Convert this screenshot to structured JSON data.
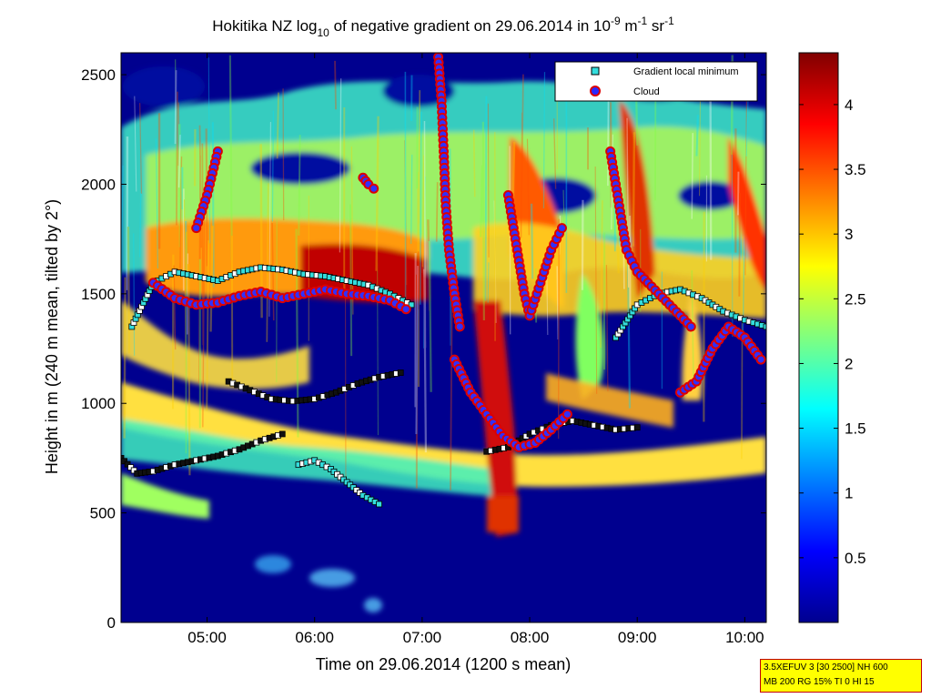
{
  "chart_data": {
    "type": "heatmap",
    "title": {
      "pre": "Hokitika NZ log",
      "sub": "10",
      "mid": " of negative gradient on 29.06.2014 in 10",
      "sup1": "-9",
      "mid2": " m",
      "sup2": "-1",
      "mid3": " sr",
      "sup3": "-1"
    },
    "xlabel": "Time on 29.06.2014 (1200 s mean)",
    "ylabel": "Height in m (240 m mean, tilted by 2°)",
    "x_ticks": [
      "05:00",
      "06:00",
      "07:00",
      "08:00",
      "09:00",
      "10:00"
    ],
    "x_range_hours": [
      4.2,
      10.2
    ],
    "y_ticks": [
      "0",
      "500",
      "1000",
      "1500",
      "2000",
      "2500"
    ],
    "ylim": [
      0,
      2600
    ],
    "colorbar_ticks": [
      "0.5",
      "1",
      "1.5",
      "2",
      "2.5",
      "3",
      "3.5",
      "4"
    ],
    "colorbar_range": [
      0,
      4.4
    ],
    "colormap": "jet",
    "legend_position": "top-right",
    "legend": [
      {
        "label": "Gradient local minimum",
        "marker": "square",
        "color": "#33dddd"
      },
      {
        "label": "Cloud",
        "marker": "circle",
        "color": "#dd0000"
      }
    ],
    "gradient_minimum_tracks": [
      {
        "t": [
          4.2,
          4.35,
          4.5,
          4.7,
          4.9,
          5.1,
          5.3,
          5.5,
          5.7
        ],
        "h": [
          750,
          680,
          690,
          720,
          740,
          760,
          790,
          830,
          860
        ]
      },
      {
        "t": [
          5.85,
          6.0,
          6.15,
          6.3,
          6.45,
          6.6
        ],
        "h": [
          720,
          740,
          700,
          640,
          580,
          540
        ]
      },
      {
        "t": [
          5.2,
          5.4,
          5.6,
          5.8,
          6.0,
          6.2,
          6.4,
          6.6,
          6.8
        ],
        "h": [
          1100,
          1060,
          1020,
          1010,
          1020,
          1050,
          1090,
          1120,
          1140
        ]
      },
      {
        "t": [
          4.3,
          4.5,
          4.7,
          4.9,
          5.1,
          5.3,
          5.5,
          5.7,
          5.9,
          6.1,
          6.3,
          6.5,
          6.7,
          6.9
        ],
        "h": [
          1350,
          1550,
          1600,
          1580,
          1560,
          1600,
          1620,
          1610,
          1590,
          1580,
          1560,
          1540,
          1500,
          1450
        ]
      },
      {
        "t": [
          7.6,
          7.8,
          8.0,
          8.2,
          8.4,
          8.6,
          8.8,
          9.0
        ],
        "h": [
          780,
          800,
          860,
          900,
          920,
          900,
          880,
          890
        ]
      },
      {
        "t": [
          8.8,
          9.0,
          9.2,
          9.4,
          9.6,
          9.8,
          10.0,
          10.2
        ],
        "h": [
          1300,
          1450,
          1500,
          1520,
          1480,
          1420,
          1380,
          1350
        ]
      }
    ],
    "cloud_tracks": [
      {
        "t": [
          4.5,
          4.7,
          4.9,
          5.1,
          5.3,
          5.5,
          5.7,
          5.9,
          6.1,
          6.3,
          6.5,
          6.7,
          6.85
        ],
        "h": [
          1550,
          1480,
          1450,
          1460,
          1490,
          1510,
          1480,
          1500,
          1520,
          1500,
          1490,
          1470,
          1430
        ]
      },
      {
        "t": [
          7.15,
          7.18,
          7.2,
          7.22,
          7.25,
          7.3,
          7.35
        ],
        "h": [
          2580,
          2380,
          2150,
          1900,
          1700,
          1500,
          1350
        ]
      },
      {
        "t": [
          7.3,
          7.45,
          7.6,
          7.75,
          7.9,
          8.05,
          8.2,
          8.35
        ],
        "h": [
          1200,
          1050,
          950,
          850,
          800,
          820,
          880,
          950
        ]
      },
      {
        "t": [
          7.8,
          7.85,
          7.9,
          7.95,
          8.0,
          8.1,
          8.2,
          8.3
        ],
        "h": [
          1950,
          1800,
          1650,
          1500,
          1400,
          1550,
          1700,
          1800
        ]
      },
      {
        "t": [
          8.75,
          8.8,
          8.85,
          8.9,
          9.0,
          9.1,
          9.2,
          9.3,
          9.4,
          9.5
        ],
        "h": [
          2150,
          2000,
          1850,
          1700,
          1600,
          1550,
          1500,
          1450,
          1400,
          1350
        ]
      },
      {
        "t": [
          9.4,
          9.55,
          9.7,
          9.85,
          10.0,
          10.15
        ],
        "h": [
          1050,
          1100,
          1250,
          1350,
          1300,
          1200
        ]
      },
      {
        "t": [
          6.45,
          6.5,
          6.55
        ],
        "h": [
          2030,
          2000,
          1980
        ]
      },
      {
        "t": [
          5.1,
          5.0,
          4.9
        ],
        "h": [
          2150,
          1950,
          1800
        ]
      }
    ]
  },
  "info_box": {
    "line1": "3.5XEFUV 3 [30 2500] NH 600",
    "line2": "MB 200 RG 15% TI 0 HI 15"
  },
  "colors": {
    "background": "#ffffff",
    "plot_low": "#00008f",
    "square_marker": "#33dddd",
    "cloud_marker": "#dd0000",
    "info_box_fill": "#ffff00",
    "info_box_border": "#c00000"
  }
}
